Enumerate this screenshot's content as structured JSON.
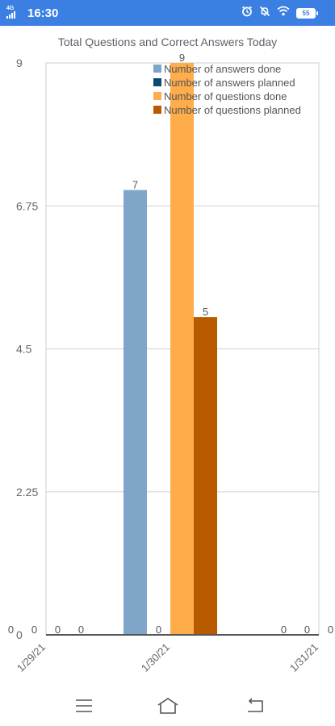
{
  "status_bar": {
    "network": "4G",
    "time": "16:30",
    "battery": "55",
    "icons": [
      "signal-icon",
      "alarm-icon",
      "mute-icon",
      "wifi-icon",
      "battery-icon"
    ]
  },
  "navigation": {
    "icons": [
      "menu-icon",
      "home-icon",
      "back-icon"
    ]
  },
  "colors": {
    "status_bar": "#3b7fe3",
    "answers_done": "#7fa6c8",
    "answers_planned": "#0c4a6e",
    "questions_done": "#ffac4a",
    "questions_planned": "#b85a00"
  },
  "chart_data": {
    "type": "bar",
    "title": "Total Questions and Correct Answers Today",
    "categories": [
      "1/29/21",
      "1/30/21",
      "1/31/21"
    ],
    "ylim": [
      0,
      9
    ],
    "yticks": [
      0,
      2.25,
      4.5,
      6.75,
      9
    ],
    "ytick_labels": [
      "0",
      "2.25",
      "4.5",
      "6.75",
      "9"
    ],
    "grid": true,
    "legend_position": "top-right",
    "series": [
      {
        "name": "Number of answers done",
        "color": "#7fa6c8",
        "values": [
          0,
          7,
          0
        ]
      },
      {
        "name": "Number of answers planned",
        "color": "#0c4a6e",
        "values": [
          0,
          0,
          0
        ]
      },
      {
        "name": "Number of questions done",
        "color": "#ffac4a",
        "values": [
          0,
          9,
          0
        ]
      },
      {
        "name": "Number of questions planned",
        "color": "#b85a00",
        "values": [
          0,
          5,
          0
        ]
      }
    ]
  }
}
